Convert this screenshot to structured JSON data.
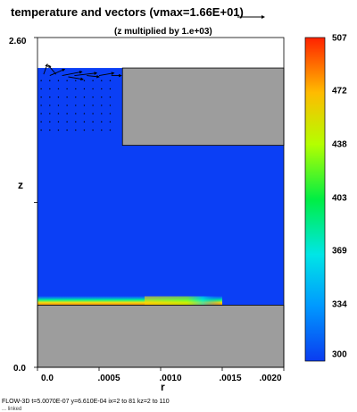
{
  "title": "temperature and vectors  (vmax=1.66E+01)",
  "subtitle": "(z multiplied by  1.e+03)",
  "footer": "FLOW-3D  t=5.0070E-07  y=6.610E-04  ix=2 to 81  kz=2 to 110",
  "footer2": "... linked",
  "colors": {
    "solid": "#9d9d9d",
    "fluid": "#0b3ff5",
    "hot_layer": [
      "#00d9ff",
      "#00ff66",
      "#ffd400",
      "#ff7a00"
    ]
  },
  "chart_data": {
    "type": "heatmap",
    "title": "temperature and vectors  (vmax=1.66E+01)",
    "xlabel": "r",
    "ylabel": "z",
    "x_ticks": [
      "0.0",
      ".0005",
      ".0010",
      ".0015",
      ".0020"
    ],
    "y_ticks": [
      "0.0",
      "2.60"
    ],
    "xlim": [
      0.0,
      0.002
    ],
    "ylim": [
      0.0,
      2.6
    ],
    "colorbar": {
      "ticks": [
        "507",
        "472",
        "438",
        "403",
        "369",
        "334",
        "300"
      ],
      "min": 300,
      "max": 507
    },
    "regions": [
      {
        "name": "fluid",
        "x": [
          0.0,
          0.002
        ],
        "y": [
          0.49,
          2.36
        ],
        "value": 300
      },
      {
        "name": "solid-bottom",
        "x": [
          0.0,
          0.002
        ],
        "y": [
          0.0,
          0.49
        ]
      },
      {
        "name": "solid-top-right",
        "x": [
          0.00069,
          0.002
        ],
        "y": [
          1.75,
          2.36
        ]
      },
      {
        "name": "hot-layer",
        "x": [
          0.0,
          0.0015
        ],
        "y": [
          0.49,
          0.56
        ],
        "value": 507
      }
    ],
    "vector_max": 16.6,
    "z_scale": 1000
  }
}
